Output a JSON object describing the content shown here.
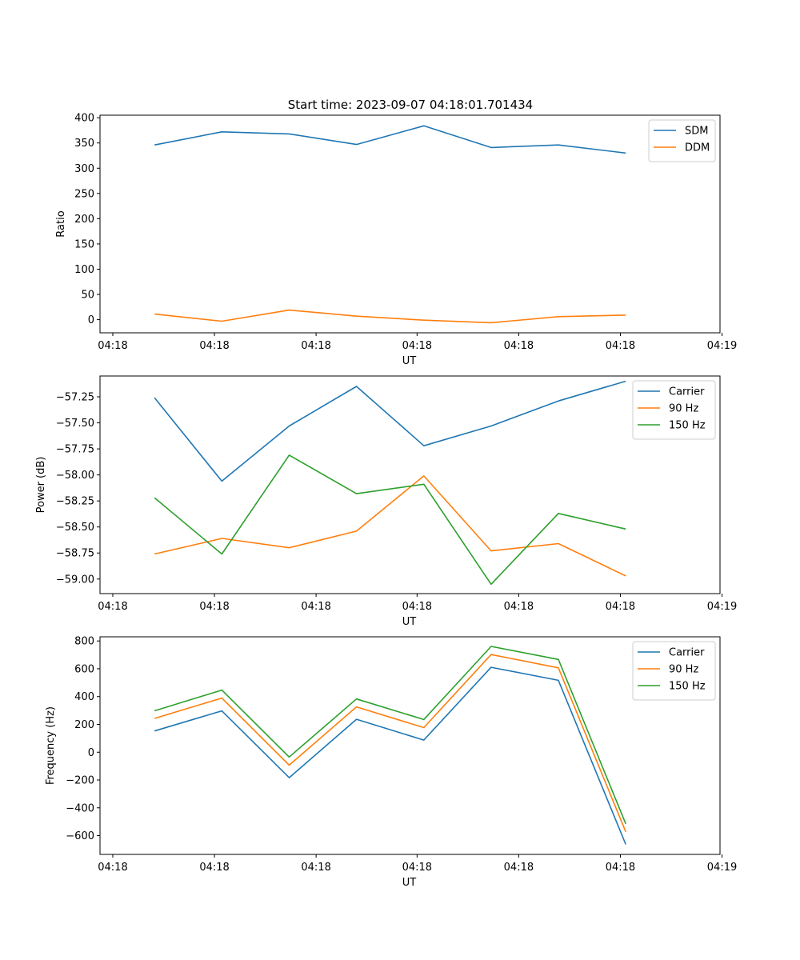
{
  "title": "Start time: 2023-09-07 04:18:01.701434",
  "chart_data": [
    {
      "type": "line",
      "ylabel": "Ratio",
      "xlabel": "UT",
      "x": [
        1,
        2,
        3,
        4,
        5,
        6,
        7,
        8
      ],
      "xlim": [
        0.19,
        9.4
      ],
      "x_ticks": [
        0.38,
        1.89,
        3.4,
        4.9,
        6.41,
        7.92,
        9.43
      ],
      "x_tick_labels": [
        "04:18",
        "04:18",
        "04:18",
        "04:18",
        "04:18",
        "04:18",
        "04:19"
      ],
      "ylim": [
        -26,
        405
      ],
      "y_ticks": [
        0,
        50,
        100,
        150,
        200,
        250,
        300,
        350,
        400
      ],
      "y_tick_labels": [
        "0",
        "50",
        "100",
        "150",
        "200",
        "250",
        "300",
        "350",
        "400"
      ],
      "legend_position": "top-right",
      "series": [
        {
          "name": "SDM",
          "color": "#1f77b4",
          "values": [
            346,
            372,
            368,
            347,
            384,
            341,
            346,
            330
          ]
        },
        {
          "name": "DDM",
          "color": "#ff7f0e",
          "values": [
            11,
            -3,
            19,
            7,
            -1,
            -6,
            6,
            9
          ]
        }
      ]
    },
    {
      "type": "line",
      "ylabel": "Power (dB)",
      "xlabel": "UT",
      "x": [
        1,
        2,
        3,
        4,
        5,
        6,
        7,
        8
      ],
      "xlim": [
        0.19,
        9.4
      ],
      "x_ticks": [
        0.38,
        1.89,
        3.4,
        4.9,
        6.41,
        7.92,
        9.43
      ],
      "x_tick_labels": [
        "04:18",
        "04:18",
        "04:18",
        "04:18",
        "04:18",
        "04:18",
        "04:19"
      ],
      "ylim": [
        -59.14,
        -57.05
      ],
      "y_ticks": [
        -59.0,
        -58.75,
        -58.5,
        -58.25,
        -58.0,
        -57.75,
        -57.5,
        -57.25
      ],
      "y_tick_labels": [
        "−59.00",
        "−58.75",
        "−58.50",
        "−58.25",
        "−58.00",
        "−57.75",
        "−57.50",
        "−57.25"
      ],
      "legend_position": "top-right",
      "series": [
        {
          "name": "Carrier",
          "color": "#1f77b4",
          "values": [
            -57.26,
            -58.06,
            -57.53,
            -57.15,
            -57.72,
            -57.53,
            -57.29,
            -57.1
          ]
        },
        {
          "name": "90 Hz",
          "color": "#ff7f0e",
          "values": [
            -58.76,
            -58.61,
            -58.7,
            -58.54,
            -58.01,
            -58.73,
            -58.66,
            -58.97
          ]
        },
        {
          "name": "150 Hz",
          "color": "#2ca02c",
          "values": [
            -58.22,
            -58.76,
            -57.81,
            -58.18,
            -58.09,
            -59.05,
            -58.37,
            -58.52
          ]
        }
      ]
    },
    {
      "type": "line",
      "ylabel": "Frequency (Hz)",
      "xlabel": "UT",
      "x": [
        1,
        2,
        3,
        4,
        5,
        6,
        7,
        8
      ],
      "xlim": [
        0.19,
        9.4
      ],
      "x_ticks": [
        0.38,
        1.89,
        3.4,
        4.9,
        6.41,
        7.92,
        9.43
      ],
      "x_tick_labels": [
        "04:18",
        "04:18",
        "04:18",
        "04:18",
        "04:18",
        "04:18",
        "04:19"
      ],
      "ylim": [
        -735,
        830
      ],
      "y_ticks": [
        -600,
        -400,
        -200,
        0,
        200,
        400,
        600,
        800
      ],
      "y_tick_labels": [
        "−600",
        "−400",
        "−200",
        "0",
        "200",
        "400",
        "600",
        "800"
      ],
      "legend_position": "top-right",
      "series": [
        {
          "name": "Carrier",
          "color": "#1f77b4",
          "values": [
            153,
            297,
            -183,
            237,
            87,
            611,
            517,
            -663
          ]
        },
        {
          "name": "90 Hz",
          "color": "#ff7f0e",
          "values": [
            243,
            389,
            -93,
            326,
            177,
            702,
            607,
            -573
          ]
        },
        {
          "name": "150 Hz",
          "color": "#2ca02c",
          "values": [
            298,
            447,
            -35,
            383,
            235,
            761,
            667,
            -515
          ]
        }
      ]
    }
  ]
}
